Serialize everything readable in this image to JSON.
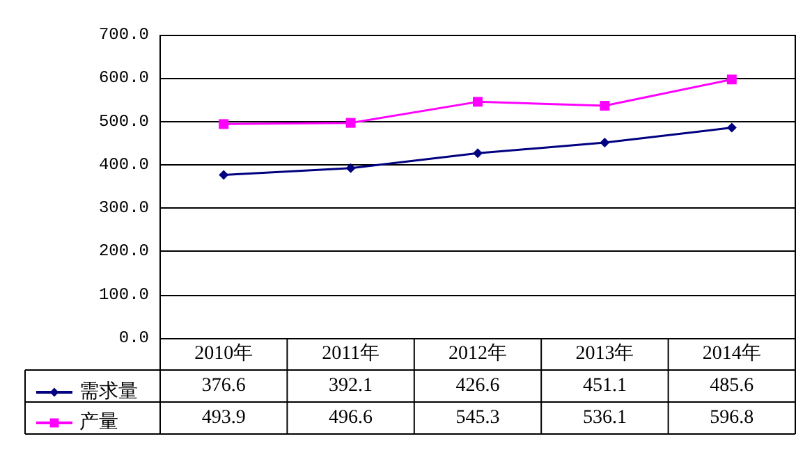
{
  "chart_data": {
    "type": "line",
    "categories": [
      "2010年",
      "2011年",
      "2012年",
      "2013年",
      "2014年"
    ],
    "series": [
      {
        "name": "需求量",
        "color": "#000080",
        "marker": "diamond",
        "values": [
          376.6,
          392.1,
          426.6,
          451.1,
          485.6
        ]
      },
      {
        "name": "产量",
        "color": "#ff00ff",
        "marker": "square",
        "values": [
          493.9,
          496.6,
          545.3,
          536.1,
          596.8
        ]
      }
    ],
    "ylim": [
      0,
      700
    ],
    "yticks": [
      {
        "value": 0,
        "label": "0.0"
      },
      {
        "value": 100,
        "label": "100.0"
      },
      {
        "value": 200,
        "label": "200.0"
      },
      {
        "value": 300,
        "label": "300.0"
      },
      {
        "value": 400,
        "label": "400.0"
      },
      {
        "value": 500,
        "label": "500.0"
      },
      {
        "value": 600,
        "label": "600.0"
      },
      {
        "value": 700,
        "label": "700.0"
      }
    ],
    "grid": "y",
    "data_labels": true,
    "legend": "bottom left",
    "line_style": "solid"
  }
}
